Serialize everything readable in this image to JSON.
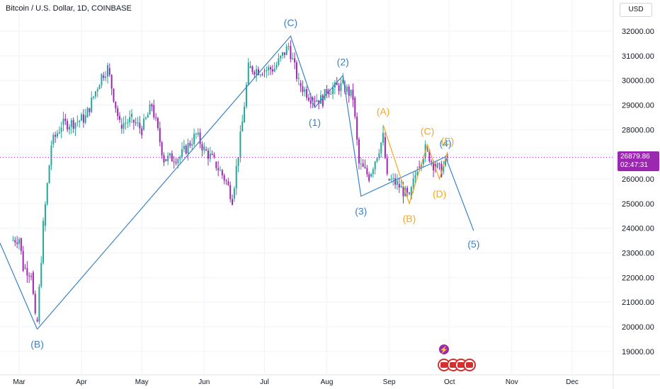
{
  "header": {
    "title": "Bitcoin / U.S. Dollar, 1D, COINBASE",
    "currency_button": "USD"
  },
  "last_price": {
    "value": "26879.86",
    "countdown": "02:47:31",
    "color": "#9c27b0"
  },
  "colors": {
    "up": "#26a69a",
    "down": "#9c27b0",
    "wave_blue": "#3b82c4",
    "wave_orange": "#f5a623",
    "axis_text": "#131722"
  },
  "chart_data": {
    "type": "candlestick",
    "title": "Bitcoin / U.S. Dollar, 1D, COINBASE",
    "ylim": [
      18200,
      32600
    ],
    "y_ticks": [
      "32000.00",
      "31000.00",
      "30000.00",
      "29000.00",
      "28000.00",
      "27000.00",
      "26000.00",
      "25000.00",
      "24000.00",
      "23000.00",
      "22000.00",
      "21000.00",
      "20000.00",
      "19000.00"
    ],
    "x_ticks": [
      "Mar",
      "Apr",
      "May",
      "Jun",
      "Jul",
      "Aug",
      "Sep",
      "Oct",
      "Nov",
      "Dec"
    ],
    "grid": true,
    "price_line": 26879.86,
    "ohlc_close_path": [
      {
        "date": "2023-02-25",
        "close": 23500
      },
      {
        "date": "2023-03-01",
        "close": 23600
      },
      {
        "date": "2023-03-03",
        "close": 22400
      },
      {
        "date": "2023-03-07",
        "close": 22200
      },
      {
        "date": "2023-03-09",
        "close": 20300
      },
      {
        "date": "2023-03-10",
        "close": 20200
      },
      {
        "date": "2023-03-13",
        "close": 24100
      },
      {
        "date": "2023-03-17",
        "close": 27400
      },
      {
        "date": "2023-03-22",
        "close": 28200
      },
      {
        "date": "2023-03-29",
        "close": 28300
      },
      {
        "date": "2023-04-03",
        "close": 28500
      },
      {
        "date": "2023-04-11",
        "close": 30200
      },
      {
        "date": "2023-04-14",
        "close": 30500
      },
      {
        "date": "2023-04-20",
        "close": 28200
      },
      {
        "date": "2023-04-26",
        "close": 28400
      },
      {
        "date": "2023-05-01",
        "close": 28000
      },
      {
        "date": "2023-05-06",
        "close": 29000
      },
      {
        "date": "2023-05-12",
        "close": 26800
      },
      {
        "date": "2023-05-20",
        "close": 26900
      },
      {
        "date": "2023-05-28",
        "close": 27800
      },
      {
        "date": "2023-06-01",
        "close": 27200
      },
      {
        "date": "2023-06-06",
        "close": 26700
      },
      {
        "date": "2023-06-12",
        "close": 25900
      },
      {
        "date": "2023-06-15",
        "close": 25200
      },
      {
        "date": "2023-06-20",
        "close": 28300
      },
      {
        "date": "2023-06-23",
        "close": 30500
      },
      {
        "date": "2023-06-30",
        "close": 30400
      },
      {
        "date": "2023-07-06",
        "close": 30500
      },
      {
        "date": "2023-07-13",
        "close": 31400
      },
      {
        "date": "2023-07-18",
        "close": 29900
      },
      {
        "date": "2023-07-24",
        "close": 29300
      },
      {
        "date": "2023-07-30",
        "close": 29200
      },
      {
        "date": "2023-08-01",
        "close": 29600
      },
      {
        "date": "2023-08-09",
        "close": 29800
      },
      {
        "date": "2023-08-14",
        "close": 29300
      },
      {
        "date": "2023-08-17",
        "close": 26600
      },
      {
        "date": "2023-08-22",
        "close": 26100
      },
      {
        "date": "2023-08-29",
        "close": 27700
      },
      {
        "date": "2023-08-31",
        "close": 26000
      },
      {
        "date": "2023-09-05",
        "close": 25800
      },
      {
        "date": "2023-09-11",
        "close": 25200
      },
      {
        "date": "2023-09-15",
        "close": 26500
      },
      {
        "date": "2023-09-19",
        "close": 27200
      },
      {
        "date": "2023-09-23",
        "close": 26600
      },
      {
        "date": "2023-09-27",
        "close": 26300
      },
      {
        "date": "2023-09-30",
        "close": 26900
      }
    ],
    "elliott_wave_blue": [
      {
        "label": "(B)",
        "date": "2023-03-10",
        "price": 19900
      },
      {
        "label": "(C)",
        "date": "2023-07-14",
        "price": 31800
      },
      {
        "label": "(1)",
        "date": "2023-07-26",
        "price": 28900
      },
      {
        "label": "(2)",
        "date": "2023-08-09",
        "price": 30200
      },
      {
        "label": "(3)",
        "date": "2023-08-18",
        "price": 25300
      },
      {
        "label": "(4)",
        "date": "2023-09-29",
        "price": 26900
      },
      {
        "label": "(5)",
        "date": "2023-10-13",
        "price": 23900
      }
    ],
    "elliott_wave_orange": [
      {
        "label": "(A)",
        "date": "2023-08-29",
        "price": 28200
      },
      {
        "label": "(B)",
        "date": "2023-09-11",
        "price": 25000
      },
      {
        "label": "(C)",
        "date": "2023-09-20",
        "price": 27400
      },
      {
        "label": "(D)",
        "date": "2023-09-26",
        "price": 26000
      },
      {
        "label": "(E)",
        "date": "2023-09-30",
        "price": 27100
      }
    ]
  }
}
